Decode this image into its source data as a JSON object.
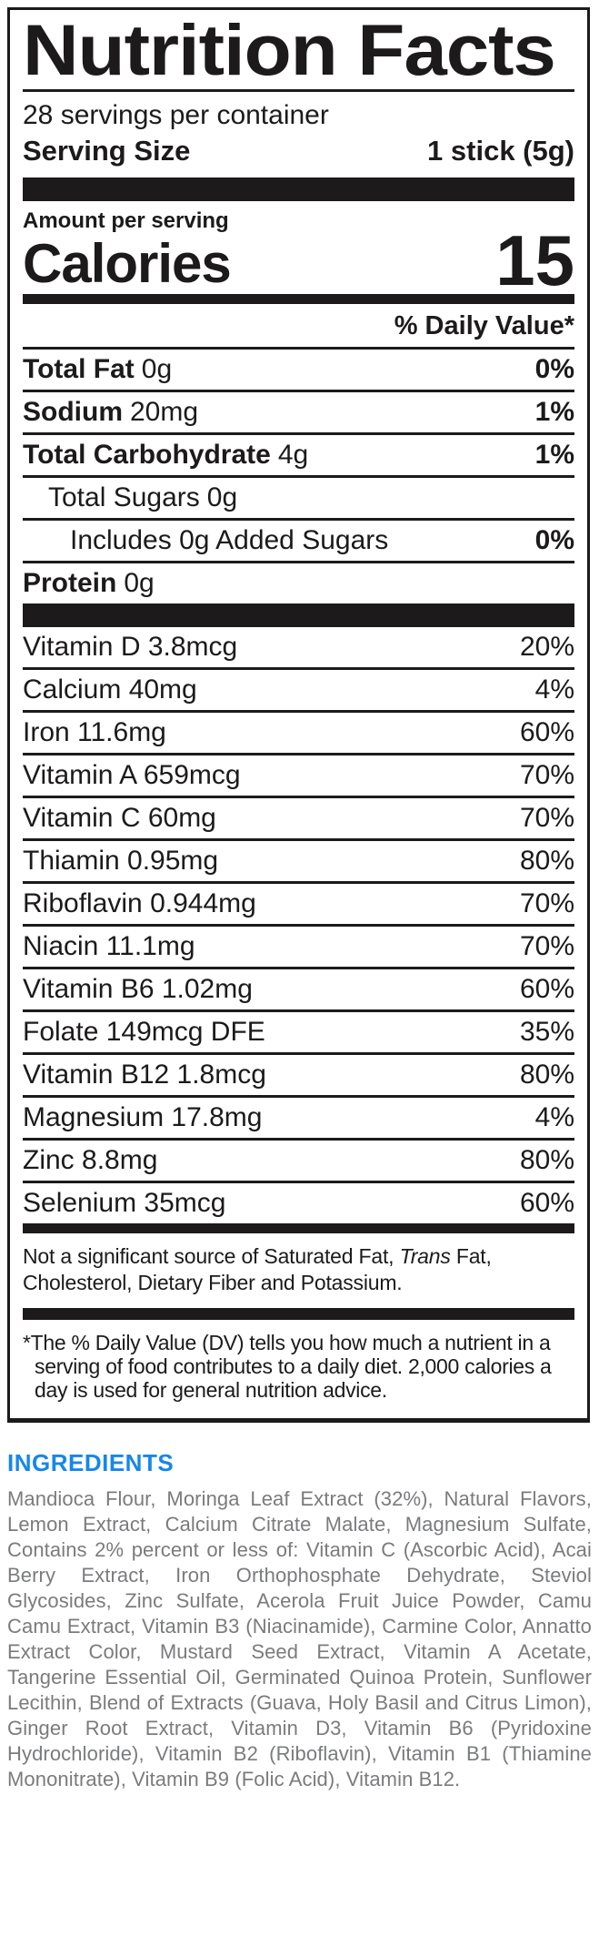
{
  "colors": {
    "label_black": "#1c1a1a",
    "ingredients_heading_blue": "#1687e8",
    "ingredients_text_gray": "#7a7b7d"
  },
  "label": {
    "title": "Nutrition Facts",
    "servings_per_container": "28 servings per container",
    "serving_size_label": "Serving Size",
    "serving_size_value": "1 stick (5g)",
    "amount_per_serving": "Amount per serving",
    "calories_label": "Calories",
    "calories_value": "15",
    "daily_value_header": "% Daily Value*",
    "main_rows": [
      {
        "name": "Total Fat",
        "amount": "0g",
        "dv": "0%"
      },
      {
        "name": "Sodium",
        "amount": "20mg",
        "dv": "1%"
      },
      {
        "name": "Total Carbohydrate",
        "amount": "4g",
        "dv": "1%"
      },
      {
        "name": "Total Sugars",
        "amount": "0g",
        "dv": ""
      },
      {
        "name": "Includes 0g Added Sugars",
        "amount": "",
        "dv": "0%"
      },
      {
        "name": "Protein",
        "amount": "0g",
        "dv": ""
      }
    ],
    "micronutrients": [
      {
        "name": "Vitamin D 3.8mcg",
        "dv": "20%"
      },
      {
        "name": "Calcium 40mg",
        "dv": "4%"
      },
      {
        "name": "Iron 11.6mg",
        "dv": "60%"
      },
      {
        "name": "Vitamin A 659mcg",
        "dv": "70%"
      },
      {
        "name": "Vitamin C 60mg",
        "dv": "70%"
      },
      {
        "name": "Thiamin 0.95mg",
        "dv": "80%"
      },
      {
        "name": "Riboflavin 0.944mg",
        "dv": "70%"
      },
      {
        "name": "Niacin 11.1mg",
        "dv": "70%"
      },
      {
        "name": "Vitamin B6 1.02mg",
        "dv": "60%"
      },
      {
        "name": "Folate 149mcg DFE",
        "dv": "35%"
      },
      {
        "name": "Vitamin B12 1.8mcg",
        "dv": "80%"
      },
      {
        "name": "Magnesium 17.8mg",
        "dv": "4%"
      },
      {
        "name": "Zinc 8.8mg",
        "dv": "80%"
      },
      {
        "name": "Selenium 35mcg",
        "dv": "60%"
      }
    ],
    "not_significant_prefix": "Not a significant source of Saturated Fat, ",
    "not_significant_italic": "Trans",
    "not_significant_suffix": " Fat, Cholesterol, Dietary Fiber and Potassium.",
    "footnote": "*The % Daily Value (DV) tells you how much a nutrient in a serving of food contributes to a daily diet. 2,000 calories a day is used for general nutrition advice."
  },
  "ingredients": {
    "heading": "INGREDIENTS",
    "text": "Mandioca Flour, Moringa Leaf Extract (32%), Natural Flavors, Lemon Extract, Calcium Citrate Malate, Magnesium Sulfate, Contains 2% percent or less of: Vitamin C (Ascorbic Acid), Acai Berry Extract, Iron Orthophosphate Dehydrate, Steviol Glycosides, Zinc Sulfate, Acerola Fruit Juice Powder, Camu Camu Extract, Vitamin B3 (Niacinamide), Carmine Color, Annatto Extract Color, Mustard Seed Extract, Vitamin A Acetate, Tangerine Essential Oil, Germinated Quinoa Protein, Sunflower Lecithin, Blend of Extracts (Guava, Holy Basil and Citrus Limon), Ginger Root Extract, Vitamin D3, Vitamin B6 (Pyridoxine Hydrochloride), Vitamin B2 (Riboflavin), Vitamin B1 (Thiamine Mononitrate), Vitamin B9 (Folic Acid), Vitamin B12."
  }
}
